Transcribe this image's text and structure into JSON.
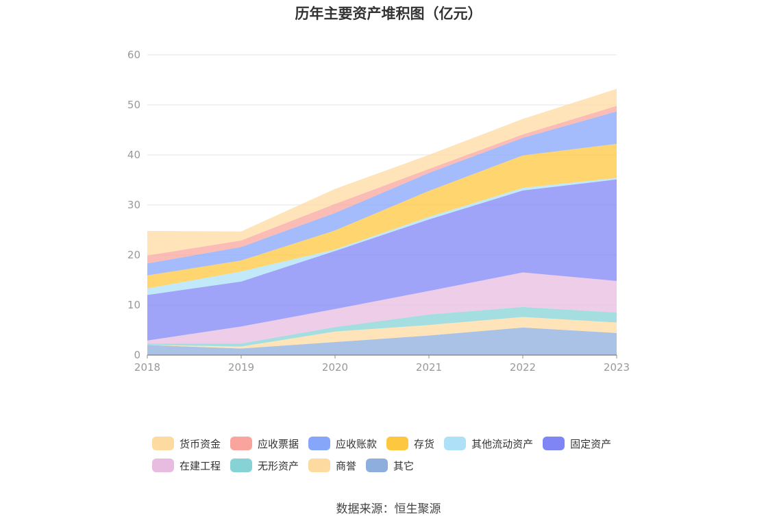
{
  "chart_data": {
    "type": "area",
    "stacked": true,
    "title": "历年主要资产堆积图（亿元）",
    "x": [
      "2018",
      "2019",
      "2020",
      "2021",
      "2022",
      "2023"
    ],
    "ylim": [
      0,
      60
    ],
    "yticks": [
      0,
      10,
      20,
      30,
      40,
      50,
      60
    ],
    "grid": true,
    "legend_position": "bottom",
    "series": [
      {
        "name": "其它",
        "color": "#8eaedd",
        "values": [
          2.0,
          1.3,
          2.6,
          3.9,
          5.5,
          4.4
        ]
      },
      {
        "name": "商誉",
        "color": "#fddba0",
        "values": [
          0.0,
          0.4,
          2.1,
          2.1,
          2.1,
          2.1
        ]
      },
      {
        "name": "无形资产",
        "color": "#86d3d6",
        "values": [
          0.3,
          0.6,
          0.9,
          2.1,
          2.0,
          2.0
        ]
      },
      {
        "name": "在建工程",
        "color": "#e8bce0",
        "values": [
          0.6,
          3.4,
          3.6,
          4.7,
          6.9,
          6.3
        ]
      },
      {
        "name": "固定资产",
        "color": "#7f85f5",
        "values": [
          9.1,
          9.0,
          11.6,
          14.3,
          16.4,
          20.3
        ]
      },
      {
        "name": "其他流动资产",
        "color": "#aee1f8",
        "values": [
          1.3,
          2.0,
          0.3,
          0.5,
          0.5,
          0.3
        ]
      },
      {
        "name": "存货",
        "color": "#fdc73f",
        "values": [
          2.6,
          2.2,
          3.8,
          5.2,
          6.5,
          6.8
        ]
      },
      {
        "name": "应收账款",
        "color": "#85a6f9",
        "values": [
          2.4,
          2.7,
          3.5,
          3.6,
          3.5,
          6.5
        ]
      },
      {
        "name": "应收票据",
        "color": "#f9a59d",
        "values": [
          1.6,
          1.3,
          1.8,
          0.8,
          0.7,
          1.1
        ]
      },
      {
        "name": "货币资金",
        "color": "#fddba0",
        "values": [
          4.9,
          1.8,
          3.0,
          2.8,
          3.1,
          3.4
        ]
      }
    ]
  },
  "legend": {
    "row1": [
      {
        "label": "货币资金",
        "color": "#fddba0"
      },
      {
        "label": "应收票据",
        "color": "#f9a59d"
      },
      {
        "label": "应收账款",
        "color": "#85a6f9"
      },
      {
        "label": "存货",
        "color": "#fdc73f"
      },
      {
        "label": "其他流动资产",
        "color": "#aee1f8"
      },
      {
        "label": "固定资产",
        "color": "#7f85f5"
      }
    ],
    "row2": [
      {
        "label": "在建工程",
        "color": "#e8bce0"
      },
      {
        "label": "无形资产",
        "color": "#86d3d6"
      },
      {
        "label": "商誉",
        "color": "#fddba0"
      },
      {
        "label": "其它",
        "color": "#8eaedd"
      }
    ]
  },
  "source": "数据来源：恒生聚源"
}
